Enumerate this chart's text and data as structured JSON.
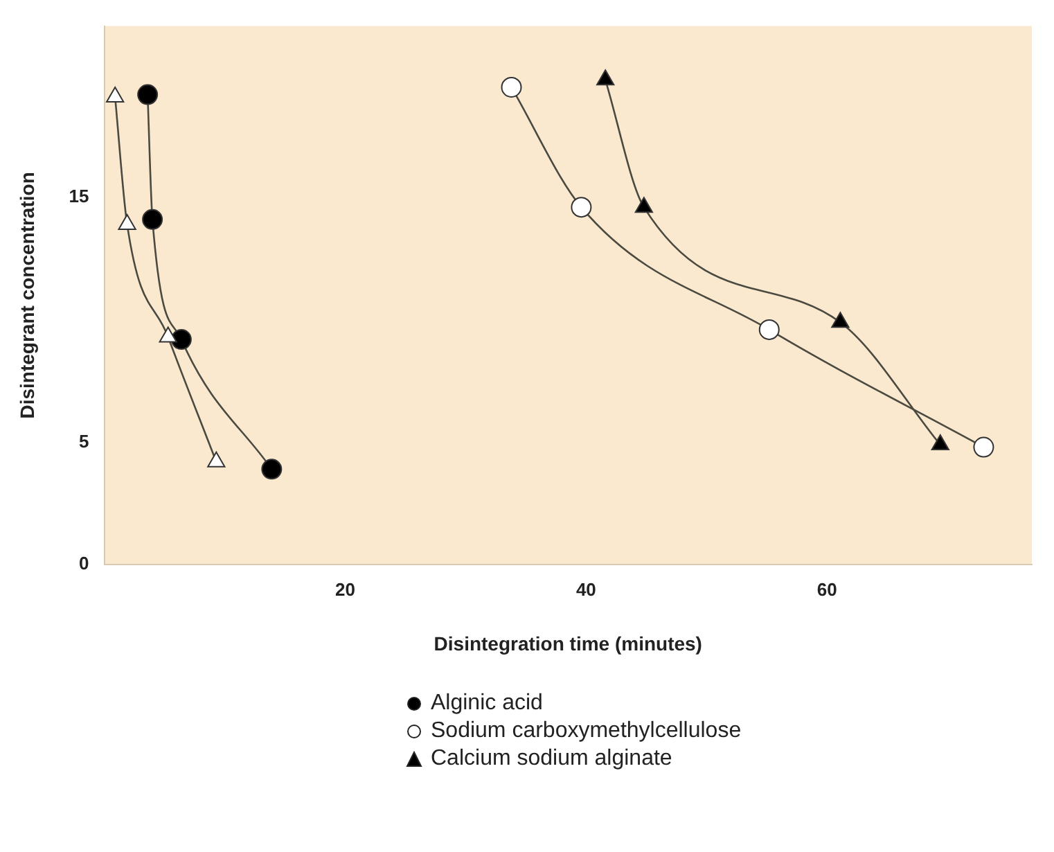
{
  "chart_data": {
    "type": "line",
    "xlabel": "Disintegration time (minutes)",
    "ylabel": "Disintegrant concentration",
    "xlim": [
      0,
      77
    ],
    "xticks": [
      20,
      40,
      60
    ],
    "ylim": [
      0,
      22
    ],
    "yticks": [
      0,
      5,
      15
    ],
    "grid": false,
    "legend": "bottom",
    "line_style": "solid",
    "series": [
      {
        "color": "#ffffff",
        "marker": "triangle",
        "x": [
          0.9,
          1.9,
          5.3,
          9.3
        ],
        "values": [
          19.1,
          13.9,
          9.3,
          4.2
        ]
      },
      {
        "name": "Alginic acid",
        "color": "#000000",
        "marker": "circle",
        "x": [
          3.6,
          4,
          6.4,
          13.9
        ],
        "values": [
          19.2,
          14.1,
          9.2,
          3.9
        ]
      },
      {
        "name": "Sodium carboxymethylcellulose",
        "color": "#ffffff",
        "marker": "circle",
        "x": [
          33.8,
          39.6,
          55.2,
          73
        ],
        "values": [
          19.5,
          14.6,
          9.6,
          4.8
        ]
      },
      {
        "name": "Calcium sodium alginate",
        "color": "#000000",
        "marker": "triangle",
        "x": [
          41.6,
          44.8,
          61.1,
          69.4
        ],
        "values": [
          19.8,
          14.6,
          9.9,
          4.9
        ]
      }
    ]
  }
}
